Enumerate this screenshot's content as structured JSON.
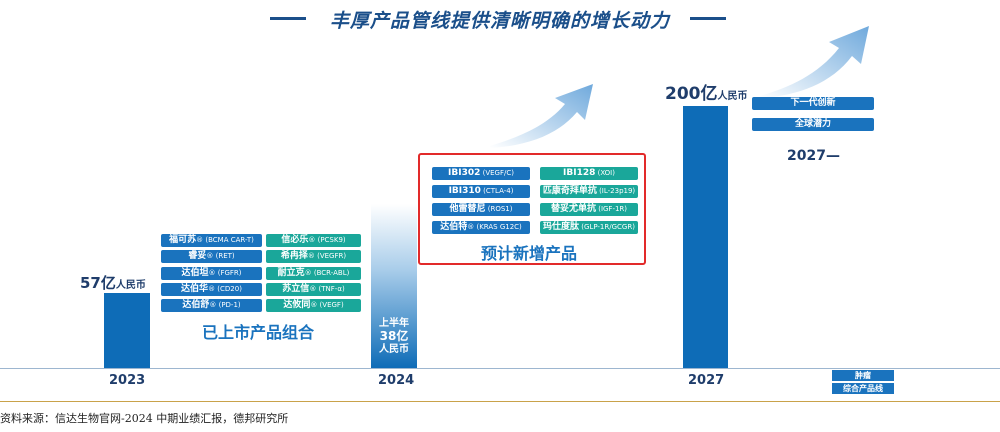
{
  "title": "丰厚产品管线提供清晰明确的增长动力",
  "chart_data": {
    "type": "bar",
    "categories": [
      "2023",
      "2024",
      "2027"
    ],
    "values": [
      57,
      38,
      200
    ],
    "value_labels": [
      "57亿人民币",
      "上半年38亿人民币",
      "200亿人民币"
    ],
    "series": [
      {
        "values": [
          57,
          38,
          200
        ]
      }
    ],
    "xlabel": "",
    "ylabel": ""
  },
  "labels": {
    "v2023": "57亿",
    "v2023_unit": "人民币",
    "v2024_line1": "上半年",
    "v2024_line2": "38亿",
    "v2024_line3": "人民币",
    "v2027": "200亿",
    "v2027_unit": "人民币"
  },
  "marketed": {
    "label": "已上市产品组合",
    "left": [
      {
        "name": "福可苏",
        "suffix": "® (BCMA CAR-T)"
      },
      {
        "name": "睿妥",
        "suffix": "® (RET)"
      },
      {
        "name": "达伯坦",
        "suffix": "® (FGFR)"
      },
      {
        "name": "达伯华",
        "suffix": "® (CD20)"
      },
      {
        "name": "达伯舒",
        "suffix": "® (PD-1)"
      }
    ],
    "right": [
      {
        "name": "信必乐",
        "suffix": "® (PCSK9)"
      },
      {
        "name": "希冉择",
        "suffix": "® (VEGFR)"
      },
      {
        "name": "耐立克",
        "suffix": "® (BCR-ABL)"
      },
      {
        "name": "苏立信",
        "suffix": "® (TNF-α)"
      },
      {
        "name": "达攸同",
        "suffix": "® (VEGF)"
      }
    ]
  },
  "new_products": {
    "label": "预计新增产品",
    "left": [
      {
        "name": "IBI302",
        "suffix": " (VEGF/C)"
      },
      {
        "name": "IBI310",
        "suffix": " (CTLA-4)"
      },
      {
        "name": "他雷替尼",
        "suffix": " (ROS1)"
      },
      {
        "name": "达伯特",
        "suffix": "® (KRAS G12C)"
      }
    ],
    "right": [
      {
        "name": "IBI128",
        "suffix": " (XOI)"
      },
      {
        "name": "匹康奇拜单抗",
        "suffix": " (IL-23p19)"
      },
      {
        "name": "替妥尤单抗",
        "suffix": " (IGF-1R)"
      },
      {
        "name": "玛仕度肽",
        "suffix": " (GLP-1R/GCGR)"
      }
    ]
  },
  "future": {
    "items": [
      "下一代创新",
      "全球潜力"
    ],
    "label": "2027—"
  },
  "legend": {
    "items": [
      "肿瘤",
      "综合产品线"
    ]
  },
  "source": "资料来源：信达生物官网-2024 中期业绩汇报，德邦研究所",
  "colors": {
    "bar": "#0e6cb7",
    "pill_blue": "#1a73be",
    "pill_teal": "#1aa79a",
    "box": "#e22a2a"
  }
}
